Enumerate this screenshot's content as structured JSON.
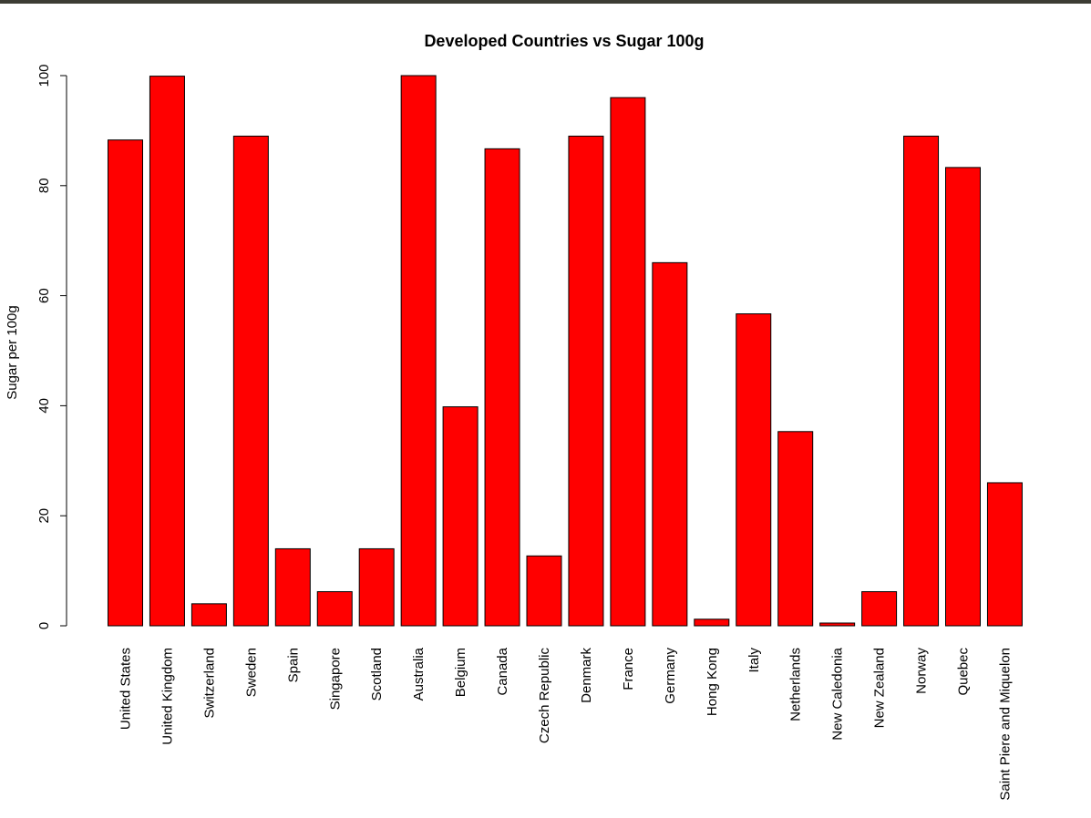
{
  "chart_data": {
    "type": "bar",
    "title": "Developed Countries vs Sugar 100g",
    "xlabel": "",
    "ylabel": "Sugar per 100g",
    "ylim": [
      0,
      100
    ],
    "yticks": [
      0,
      20,
      40,
      60,
      80,
      100
    ],
    "categories": [
      "United States",
      "United Kingdom",
      "Switzerland",
      "Sweden",
      "Spain",
      "Singapore",
      "Scotland",
      "Australia",
      "Belgium",
      "Canada",
      "Czech Republic",
      "Denmark",
      "France",
      "Germany",
      "Hong Kong",
      "Italy",
      "Netherlands",
      "New Caledonia",
      "New Zealand",
      "Norway",
      "Quebec",
      "Saint Piere and Miquelon"
    ],
    "values": [
      88.3,
      99.9,
      4.0,
      89.0,
      14.0,
      6.2,
      14.0,
      100.0,
      39.8,
      86.7,
      12.7,
      89.0,
      96.0,
      66.0,
      1.2,
      56.7,
      35.3,
      0.5,
      6.2,
      89.0,
      83.3,
      26.0
    ],
    "bar_color": "#ff0000",
    "bar_border_color": "#000000",
    "grid": false,
    "legend": "none"
  }
}
